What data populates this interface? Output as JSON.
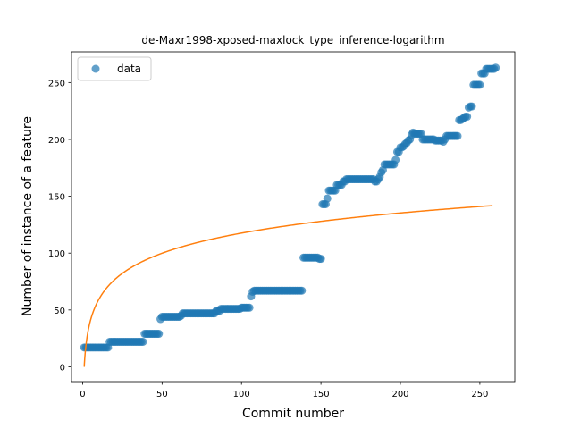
{
  "chart_data": {
    "type": "scatter",
    "title": "de-Maxr1998-xposed-maxlock_type_inference-logarithm",
    "xlabel": "Commit number",
    "ylabel": "Number of instance of a feature",
    "xlim": [
      -7,
      272
    ],
    "ylim": [
      -13,
      277
    ],
    "xticks": [
      0,
      50,
      100,
      150,
      200,
      250
    ],
    "yticks": [
      0,
      50,
      100,
      150,
      200,
      250
    ],
    "grid": false,
    "legend": {
      "placement": "top-left",
      "entries": [
        "data"
      ]
    },
    "colors": {
      "data": "#1f77b4",
      "fit": "#ff7f0e"
    },
    "series": [
      {
        "name": "data",
        "kind": "scatter",
        "points": [
          [
            1,
            17
          ],
          [
            2,
            17
          ],
          [
            3,
            17
          ],
          [
            4,
            17
          ],
          [
            5,
            17
          ],
          [
            6,
            17
          ],
          [
            7,
            17
          ],
          [
            8,
            17
          ],
          [
            9,
            17
          ],
          [
            10,
            17
          ],
          [
            11,
            17
          ],
          [
            12,
            17
          ],
          [
            13,
            17
          ],
          [
            14,
            17
          ],
          [
            15,
            17
          ],
          [
            16,
            17
          ],
          [
            17,
            22
          ],
          [
            18,
            22
          ],
          [
            19,
            22
          ],
          [
            20,
            22
          ],
          [
            21,
            22
          ],
          [
            22,
            22
          ],
          [
            23,
            22
          ],
          [
            24,
            22
          ],
          [
            25,
            22
          ],
          [
            26,
            22
          ],
          [
            27,
            22
          ],
          [
            28,
            22
          ],
          [
            29,
            22
          ],
          [
            30,
            22
          ],
          [
            31,
            22
          ],
          [
            32,
            22
          ],
          [
            33,
            22
          ],
          [
            34,
            22
          ],
          [
            35,
            22
          ],
          [
            36,
            22
          ],
          [
            37,
            22
          ],
          [
            38,
            22
          ],
          [
            39,
            29
          ],
          [
            40,
            29
          ],
          [
            41,
            29
          ],
          [
            42,
            29
          ],
          [
            43,
            29
          ],
          [
            44,
            29
          ],
          [
            45,
            29
          ],
          [
            46,
            29
          ],
          [
            47,
            29
          ],
          [
            48,
            29
          ],
          [
            49,
            42
          ],
          [
            50,
            44
          ],
          [
            51,
            44
          ],
          [
            52,
            44
          ],
          [
            53,
            44
          ],
          [
            54,
            44
          ],
          [
            55,
            44
          ],
          [
            56,
            44
          ],
          [
            57,
            44
          ],
          [
            58,
            44
          ],
          [
            59,
            44
          ],
          [
            60,
            44
          ],
          [
            61,
            44
          ],
          [
            62,
            45
          ],
          [
            63,
            47
          ],
          [
            64,
            47
          ],
          [
            65,
            47
          ],
          [
            66,
            47
          ],
          [
            67,
            47
          ],
          [
            68,
            47
          ],
          [
            69,
            47
          ],
          [
            70,
            47
          ],
          [
            71,
            47
          ],
          [
            72,
            47
          ],
          [
            73,
            47
          ],
          [
            74,
            47
          ],
          [
            75,
            47
          ],
          [
            76,
            47
          ],
          [
            77,
            47
          ],
          [
            78,
            47
          ],
          [
            79,
            47
          ],
          [
            80,
            47
          ],
          [
            81,
            47
          ],
          [
            82,
            47
          ],
          [
            83,
            47
          ],
          [
            84,
            49
          ],
          [
            85,
            49
          ],
          [
            86,
            49
          ],
          [
            87,
            51
          ],
          [
            88,
            51
          ],
          [
            89,
            51
          ],
          [
            90,
            51
          ],
          [
            91,
            51
          ],
          [
            92,
            51
          ],
          [
            93,
            51
          ],
          [
            94,
            51
          ],
          [
            95,
            51
          ],
          [
            96,
            51
          ],
          [
            97,
            51
          ],
          [
            98,
            51
          ],
          [
            99,
            51
          ],
          [
            100,
            52
          ],
          [
            101,
            52
          ],
          [
            102,
            52
          ],
          [
            103,
            52
          ],
          [
            104,
            52
          ],
          [
            105,
            52
          ],
          [
            106,
            62
          ],
          [
            107,
            66
          ],
          [
            108,
            67
          ],
          [
            109,
            67
          ],
          [
            110,
            67
          ],
          [
            111,
            67
          ],
          [
            112,
            67
          ],
          [
            113,
            67
          ],
          [
            114,
            67
          ],
          [
            115,
            67
          ],
          [
            116,
            67
          ],
          [
            117,
            67
          ],
          [
            118,
            67
          ],
          [
            119,
            67
          ],
          [
            120,
            67
          ],
          [
            121,
            67
          ],
          [
            122,
            67
          ],
          [
            123,
            67
          ],
          [
            124,
            67
          ],
          [
            125,
            67
          ],
          [
            126,
            67
          ],
          [
            127,
            67
          ],
          [
            128,
            67
          ],
          [
            129,
            67
          ],
          [
            130,
            67
          ],
          [
            131,
            67
          ],
          [
            132,
            67
          ],
          [
            133,
            67
          ],
          [
            134,
            67
          ],
          [
            135,
            67
          ],
          [
            136,
            67
          ],
          [
            137,
            67
          ],
          [
            138,
            67
          ],
          [
            139,
            96
          ],
          [
            140,
            96
          ],
          [
            141,
            96
          ],
          [
            142,
            96
          ],
          [
            143,
            96
          ],
          [
            144,
            96
          ],
          [
            145,
            96
          ],
          [
            146,
            96
          ],
          [
            147,
            96
          ],
          [
            148,
            96
          ],
          [
            149,
            95
          ],
          [
            150,
            95
          ],
          [
            151,
            143
          ],
          [
            152,
            143
          ],
          [
            153,
            143
          ],
          [
            154,
            148
          ],
          [
            155,
            155
          ],
          [
            156,
            155
          ],
          [
            157,
            155
          ],
          [
            158,
            155
          ],
          [
            159,
            155
          ],
          [
            160,
            160
          ],
          [
            161,
            160
          ],
          [
            162,
            160
          ],
          [
            163,
            160
          ],
          [
            164,
            163
          ],
          [
            165,
            163
          ],
          [
            166,
            165
          ],
          [
            167,
            165
          ],
          [
            168,
            165
          ],
          [
            169,
            165
          ],
          [
            170,
            165
          ],
          [
            171,
            165
          ],
          [
            172,
            165
          ],
          [
            173,
            165
          ],
          [
            174,
            165
          ],
          [
            175,
            165
          ],
          [
            176,
            165
          ],
          [
            177,
            165
          ],
          [
            178,
            165
          ],
          [
            179,
            165
          ],
          [
            180,
            165
          ],
          [
            181,
            165
          ],
          [
            182,
            165
          ],
          [
            183,
            165
          ],
          [
            184,
            163
          ],
          [
            185,
            163
          ],
          [
            186,
            165
          ],
          [
            187,
            167
          ],
          [
            188,
            171
          ],
          [
            189,
            173
          ],
          [
            190,
            178
          ],
          [
            191,
            178
          ],
          [
            192,
            178
          ],
          [
            193,
            178
          ],
          [
            194,
            178
          ],
          [
            195,
            178
          ],
          [
            196,
            178
          ],
          [
            197,
            182
          ],
          [
            198,
            189
          ],
          [
            199,
            189
          ],
          [
            200,
            193
          ],
          [
            201,
            193
          ],
          [
            202,
            194
          ],
          [
            203,
            196
          ],
          [
            204,
            197
          ],
          [
            205,
            199
          ],
          [
            206,
            200
          ],
          [
            207,
            204
          ],
          [
            208,
            206
          ],
          [
            209,
            205
          ],
          [
            210,
            205
          ],
          [
            211,
            205
          ],
          [
            212,
            205
          ],
          [
            213,
            205
          ],
          [
            214,
            200
          ],
          [
            215,
            200
          ],
          [
            216,
            200
          ],
          [
            217,
            200
          ],
          [
            218,
            200
          ],
          [
            219,
            200
          ],
          [
            220,
            200
          ],
          [
            221,
            200
          ],
          [
            222,
            199
          ],
          [
            223,
            199
          ],
          [
            224,
            199
          ],
          [
            225,
            199
          ],
          [
            226,
            199
          ],
          [
            227,
            198
          ],
          [
            228,
            200
          ],
          [
            229,
            203
          ],
          [
            230,
            203
          ],
          [
            231,
            203
          ],
          [
            232,
            203
          ],
          [
            233,
            203
          ],
          [
            234,
            203
          ],
          [
            235,
            203
          ],
          [
            236,
            203
          ],
          [
            237,
            217
          ],
          [
            238,
            217
          ],
          [
            239,
            218
          ],
          [
            240,
            219
          ],
          [
            241,
            220
          ],
          [
            242,
            220
          ],
          [
            243,
            228
          ],
          [
            244,
            229
          ],
          [
            245,
            229
          ],
          [
            246,
            248
          ],
          [
            247,
            248
          ],
          [
            248,
            248
          ],
          [
            249,
            248
          ],
          [
            250,
            248
          ],
          [
            251,
            258
          ],
          [
            252,
            258
          ],
          [
            253,
            258
          ],
          [
            254,
            262
          ],
          [
            255,
            262
          ],
          [
            256,
            262
          ],
          [
            257,
            262
          ],
          [
            258,
            262
          ],
          [
            259,
            262
          ],
          [
            260,
            263
          ]
        ]
      },
      {
        "kind": "line",
        "function": "log",
        "x_range": [
          1,
          258
        ],
        "samples": [
          [
            1,
            0
          ],
          [
            2,
            17.7
          ],
          [
            3,
            28.1
          ],
          [
            5,
            41.1
          ],
          [
            10,
            58.8
          ],
          [
            20,
            76.5
          ],
          [
            30,
            86.9
          ],
          [
            50,
            99.9
          ],
          [
            75,
            110.3
          ],
          [
            100,
            117.6
          ],
          [
            125,
            123.4
          ],
          [
            150,
            128.0
          ],
          [
            175,
            131.9
          ],
          [
            200,
            135.3
          ],
          [
            225,
            138.3
          ],
          [
            258,
            141.8
          ]
        ]
      }
    ]
  }
}
